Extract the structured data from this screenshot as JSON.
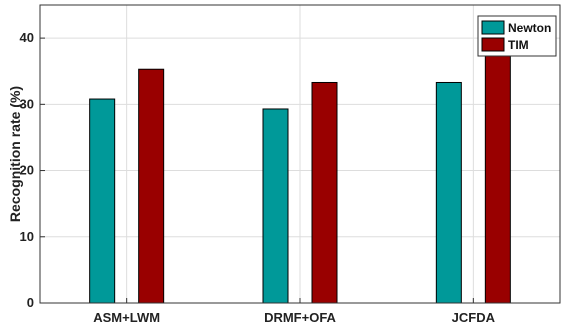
{
  "chart_data": {
    "type": "bar",
    "categories": [
      "ASM+LWM",
      "DRMF+OFA",
      "JCFDA"
    ],
    "series": [
      {
        "name": "Newton",
        "values": [
          30.8,
          29.3,
          33.3
        ],
        "color": "#009999"
      },
      {
        "name": "TIM",
        "values": [
          35.3,
          33.3,
          38.9
        ],
        "color": "#990000"
      }
    ],
    "title": "",
    "xlabel": "",
    "ylabel": "Recognition rate (%)",
    "ylim": [
      0,
      45
    ],
    "yticks": [
      0,
      10,
      20,
      30,
      40
    ],
    "grid": true,
    "legend_position": "top-right"
  }
}
